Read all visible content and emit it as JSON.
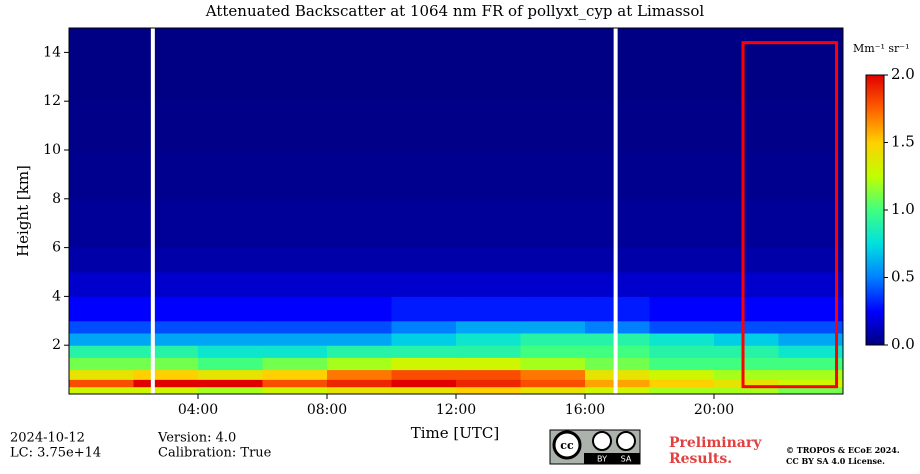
{
  "chart_data": {
    "type": "heatmap",
    "title": "Attenuated Backscatter at 1064 nm FR of pollyxt_cyp at Limassol",
    "xlabel": "Time [UTC]",
    "ylabel": "Height [km]",
    "xlim": [
      0,
      24
    ],
    "ylim": [
      0,
      15
    ],
    "xticks": [
      {
        "value": 4,
        "label": "04:00"
      },
      {
        "value": 8,
        "label": "08:00"
      },
      {
        "value": 12,
        "label": "12:00"
      },
      {
        "value": 16,
        "label": "16:00"
      },
      {
        "value": 20,
        "label": "20:00"
      }
    ],
    "yticks": [
      2,
      4,
      6,
      8,
      10,
      12,
      14
    ],
    "x_edges": [
      0,
      2,
      4,
      6,
      8,
      10,
      12,
      14,
      16,
      18,
      20,
      22,
      24
    ],
    "y_edges": [
      0,
      0.3,
      0.6,
      1,
      1.5,
      2,
      2.5,
      3,
      4,
      5,
      6,
      8,
      10,
      12,
      15
    ],
    "z": [
      [
        1.3,
        1.3,
        1.2,
        1.3,
        1.4,
        1.4,
        1.5,
        1.4,
        1.3,
        1.2,
        1.2,
        1.1
      ],
      [
        1.8,
        2.0,
        2.0,
        1.8,
        1.9,
        2.0,
        1.9,
        1.8,
        1.6,
        1.5,
        1.4,
        1.3
      ],
      [
        1.4,
        1.5,
        1.4,
        1.5,
        1.7,
        1.8,
        1.8,
        1.7,
        1.4,
        1.3,
        1.2,
        1.2
      ],
      [
        1.1,
        1.1,
        1.0,
        1.1,
        1.2,
        1.3,
        1.3,
        1.2,
        1.1,
        1.0,
        1.0,
        1.0
      ],
      [
        0.9,
        0.9,
        0.8,
        0.8,
        0.9,
        0.9,
        0.9,
        1.0,
        1.0,
        0.9,
        0.9,
        0.8
      ],
      [
        0.6,
        0.6,
        0.6,
        0.6,
        0.6,
        0.7,
        0.8,
        0.9,
        0.9,
        0.8,
        0.7,
        0.6
      ],
      [
        0.4,
        0.4,
        0.4,
        0.4,
        0.4,
        0.5,
        0.6,
        0.6,
        0.5,
        0.4,
        0.4,
        0.4
      ],
      [
        0.25,
        0.25,
        0.25,
        0.25,
        0.25,
        0.3,
        0.3,
        0.3,
        0.3,
        0.25,
        0.25,
        0.25
      ],
      [
        0.15,
        0.15,
        0.15,
        0.15,
        0.15,
        0.15,
        0.15,
        0.15,
        0.15,
        0.15,
        0.15,
        0.15
      ],
      [
        0.08,
        0.08,
        0.08,
        0.08,
        0.08,
        0.08,
        0.08,
        0.08,
        0.08,
        0.08,
        0.08,
        0.08
      ],
      [
        0.05,
        0.05,
        0.05,
        0.05,
        0.05,
        0.05,
        0.05,
        0.05,
        0.05,
        0.05,
        0.05,
        0.05
      ],
      [
        0.03,
        0.03,
        0.03,
        0.03,
        0.03,
        0.03,
        0.03,
        0.03,
        0.03,
        0.03,
        0.03,
        0.03
      ],
      [
        0.02,
        0.02,
        0.02,
        0.02,
        0.02,
        0.02,
        0.02,
        0.02,
        0.02,
        0.02,
        0.02,
        0.02
      ],
      [
        0.01,
        0.01,
        0.01,
        0.01,
        0.01,
        0.01,
        0.01,
        0.01,
        0.01,
        0.01,
        0.01,
        0.01
      ]
    ],
    "missing_times": [
      2.6,
      16.95
    ],
    "missing_color": "#ffffff",
    "colormap": [
      "#00007f",
      "#0000ff",
      "#0080ff",
      "#00e0e0",
      "#40ff80",
      "#c0ff00",
      "#ffd000",
      "#ff6000",
      "#e00000"
    ],
    "clim": [
      0,
      2
    ],
    "cticks": [
      {
        "value": 0,
        "label": "0.0"
      },
      {
        "value": 0.5,
        "label": "0.5"
      },
      {
        "value": 1,
        "label": "1.0"
      },
      {
        "value": 1.5,
        "label": "1.5"
      },
      {
        "value": 2,
        "label": "2.0"
      }
    ],
    "colorbar_label": "Mm⁻¹ sr⁻¹",
    "highlight": {
      "x": [
        20.9,
        23.8
      ],
      "y": [
        0.3,
        14.4
      ],
      "color": "#ff0000"
    }
  },
  "footer": {
    "date": "2024-10-12",
    "lc": "LC: 3.75e+14",
    "version": "Version: 4.0",
    "calibration": "Calibration: True",
    "license_by": "BY",
    "license_sa": "SA",
    "preliminary": [
      "Preliminary",
      "Results."
    ],
    "copyright": [
      "© TROPOS & ECoE 2024.",
      "CC BY SA 4.0 License."
    ]
  }
}
